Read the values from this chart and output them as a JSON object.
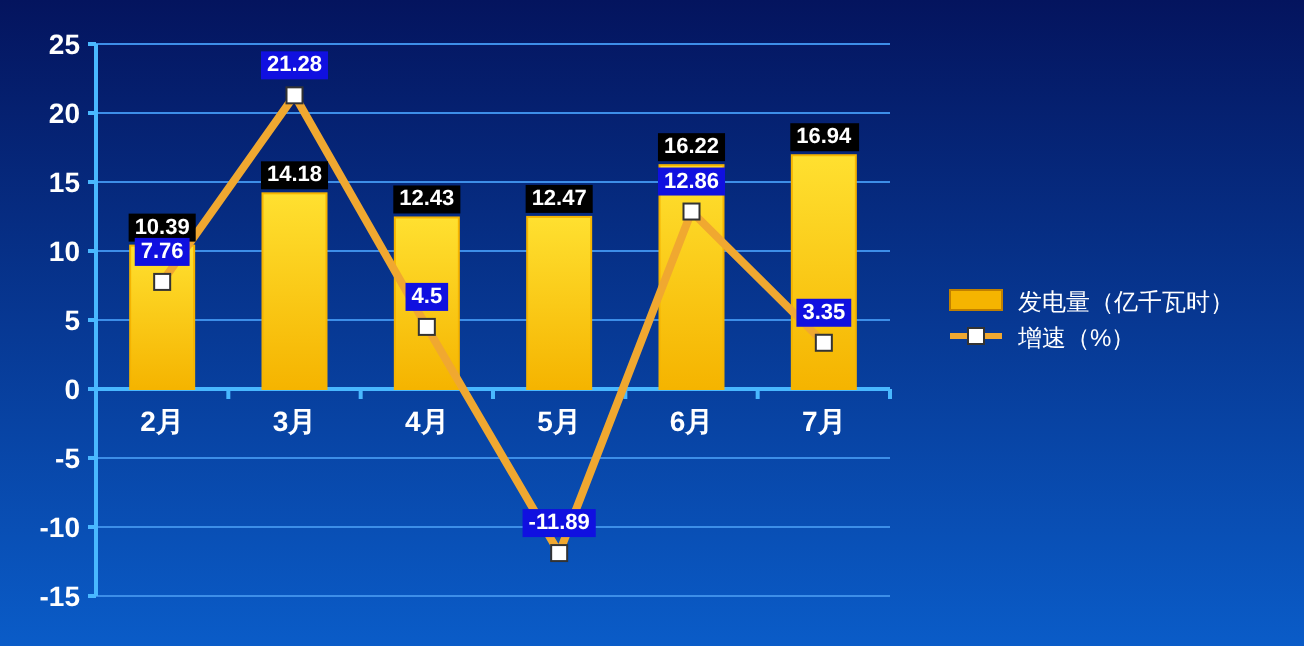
{
  "chart_data": {
    "type": "bar",
    "categories": [
      "2月",
      "3月",
      "4月",
      "5月",
      "6月",
      "7月"
    ],
    "series": [
      {
        "name": "发电量（亿千瓦时）",
        "color": "#f5b400",
        "values": [
          10.39,
          14.18,
          12.43,
          12.47,
          16.22,
          16.94
        ]
      },
      {
        "name": "增速（%）",
        "type": "line",
        "color": "#f0a830",
        "values": [
          7.76,
          21.28,
          4.5,
          -11.89,
          12.86,
          3.35
        ]
      }
    ],
    "ylim": [
      -15,
      25
    ],
    "yticks": [
      -15,
      -10,
      -5,
      0,
      5,
      10,
      15,
      20,
      25
    ],
    "grid": "y",
    "legend": "right",
    "marker": "square",
    "data_labels": true
  }
}
